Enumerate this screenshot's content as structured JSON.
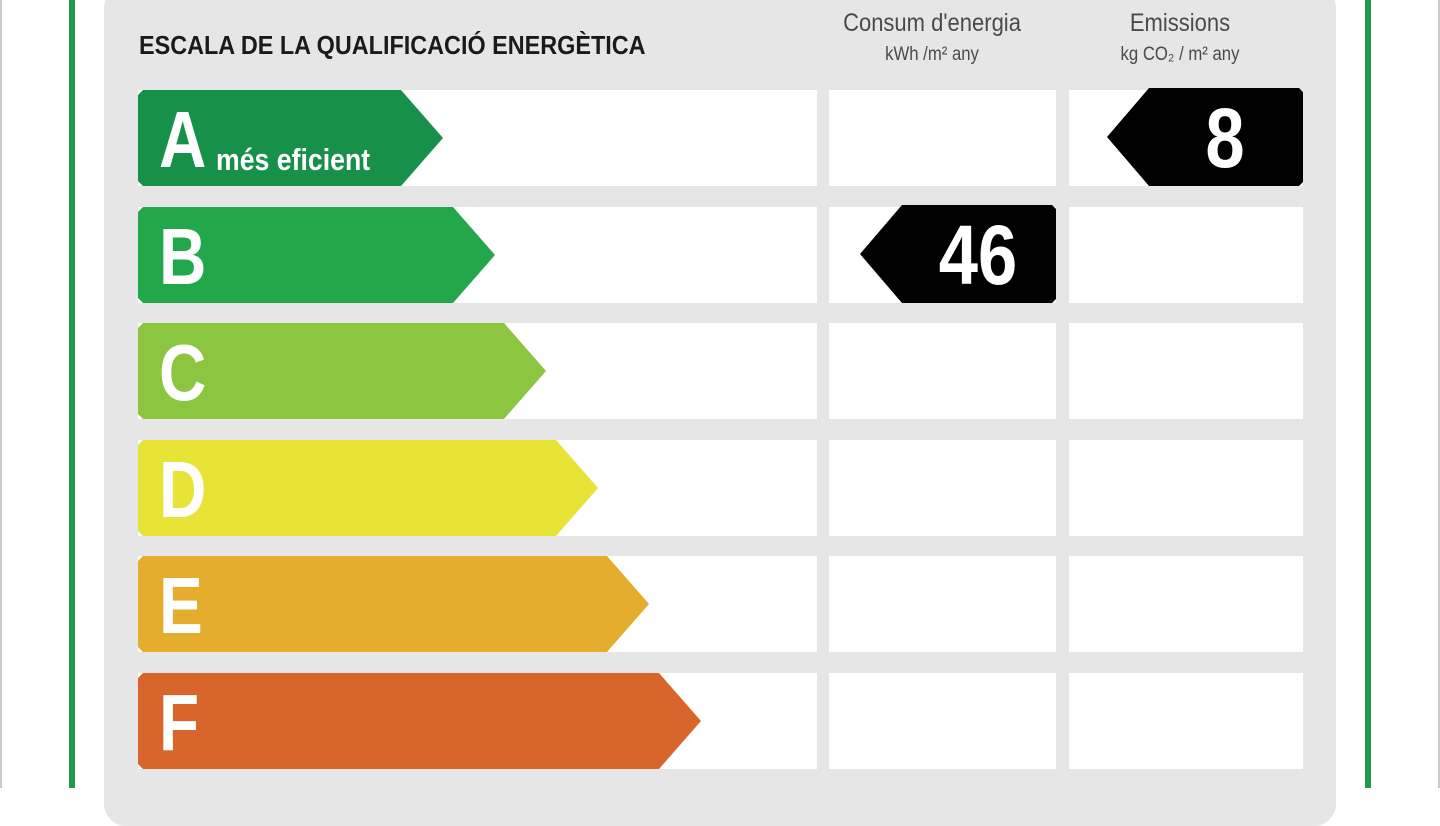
{
  "chart_data": {
    "type": "bar",
    "title": "ESCALA DE LA QUALIFICACIÓ ENERGÈTICA",
    "categories": [
      "A",
      "B",
      "C",
      "D",
      "E",
      "F"
    ],
    "category_notes": {
      "A": "més eficient"
    },
    "band_colors": [
      "#17914a",
      "#22a84b",
      "#8cc540",
      "#e7e337",
      "#e4ad2d",
      "#d8652b"
    ],
    "columns": [
      {
        "key": "consum",
        "label": "Consum d'energia",
        "unit": "kWh /m² any",
        "value": 46,
        "rating": "B"
      },
      {
        "key": "emissions",
        "label": "Emissions",
        "unit": "kg CO₂ / m² any",
        "value": 8,
        "rating": "A"
      }
    ]
  },
  "colors": {
    "frame_green": "#1f9a4c",
    "panel": "#e6e6e6",
    "marker": "#000000"
  }
}
